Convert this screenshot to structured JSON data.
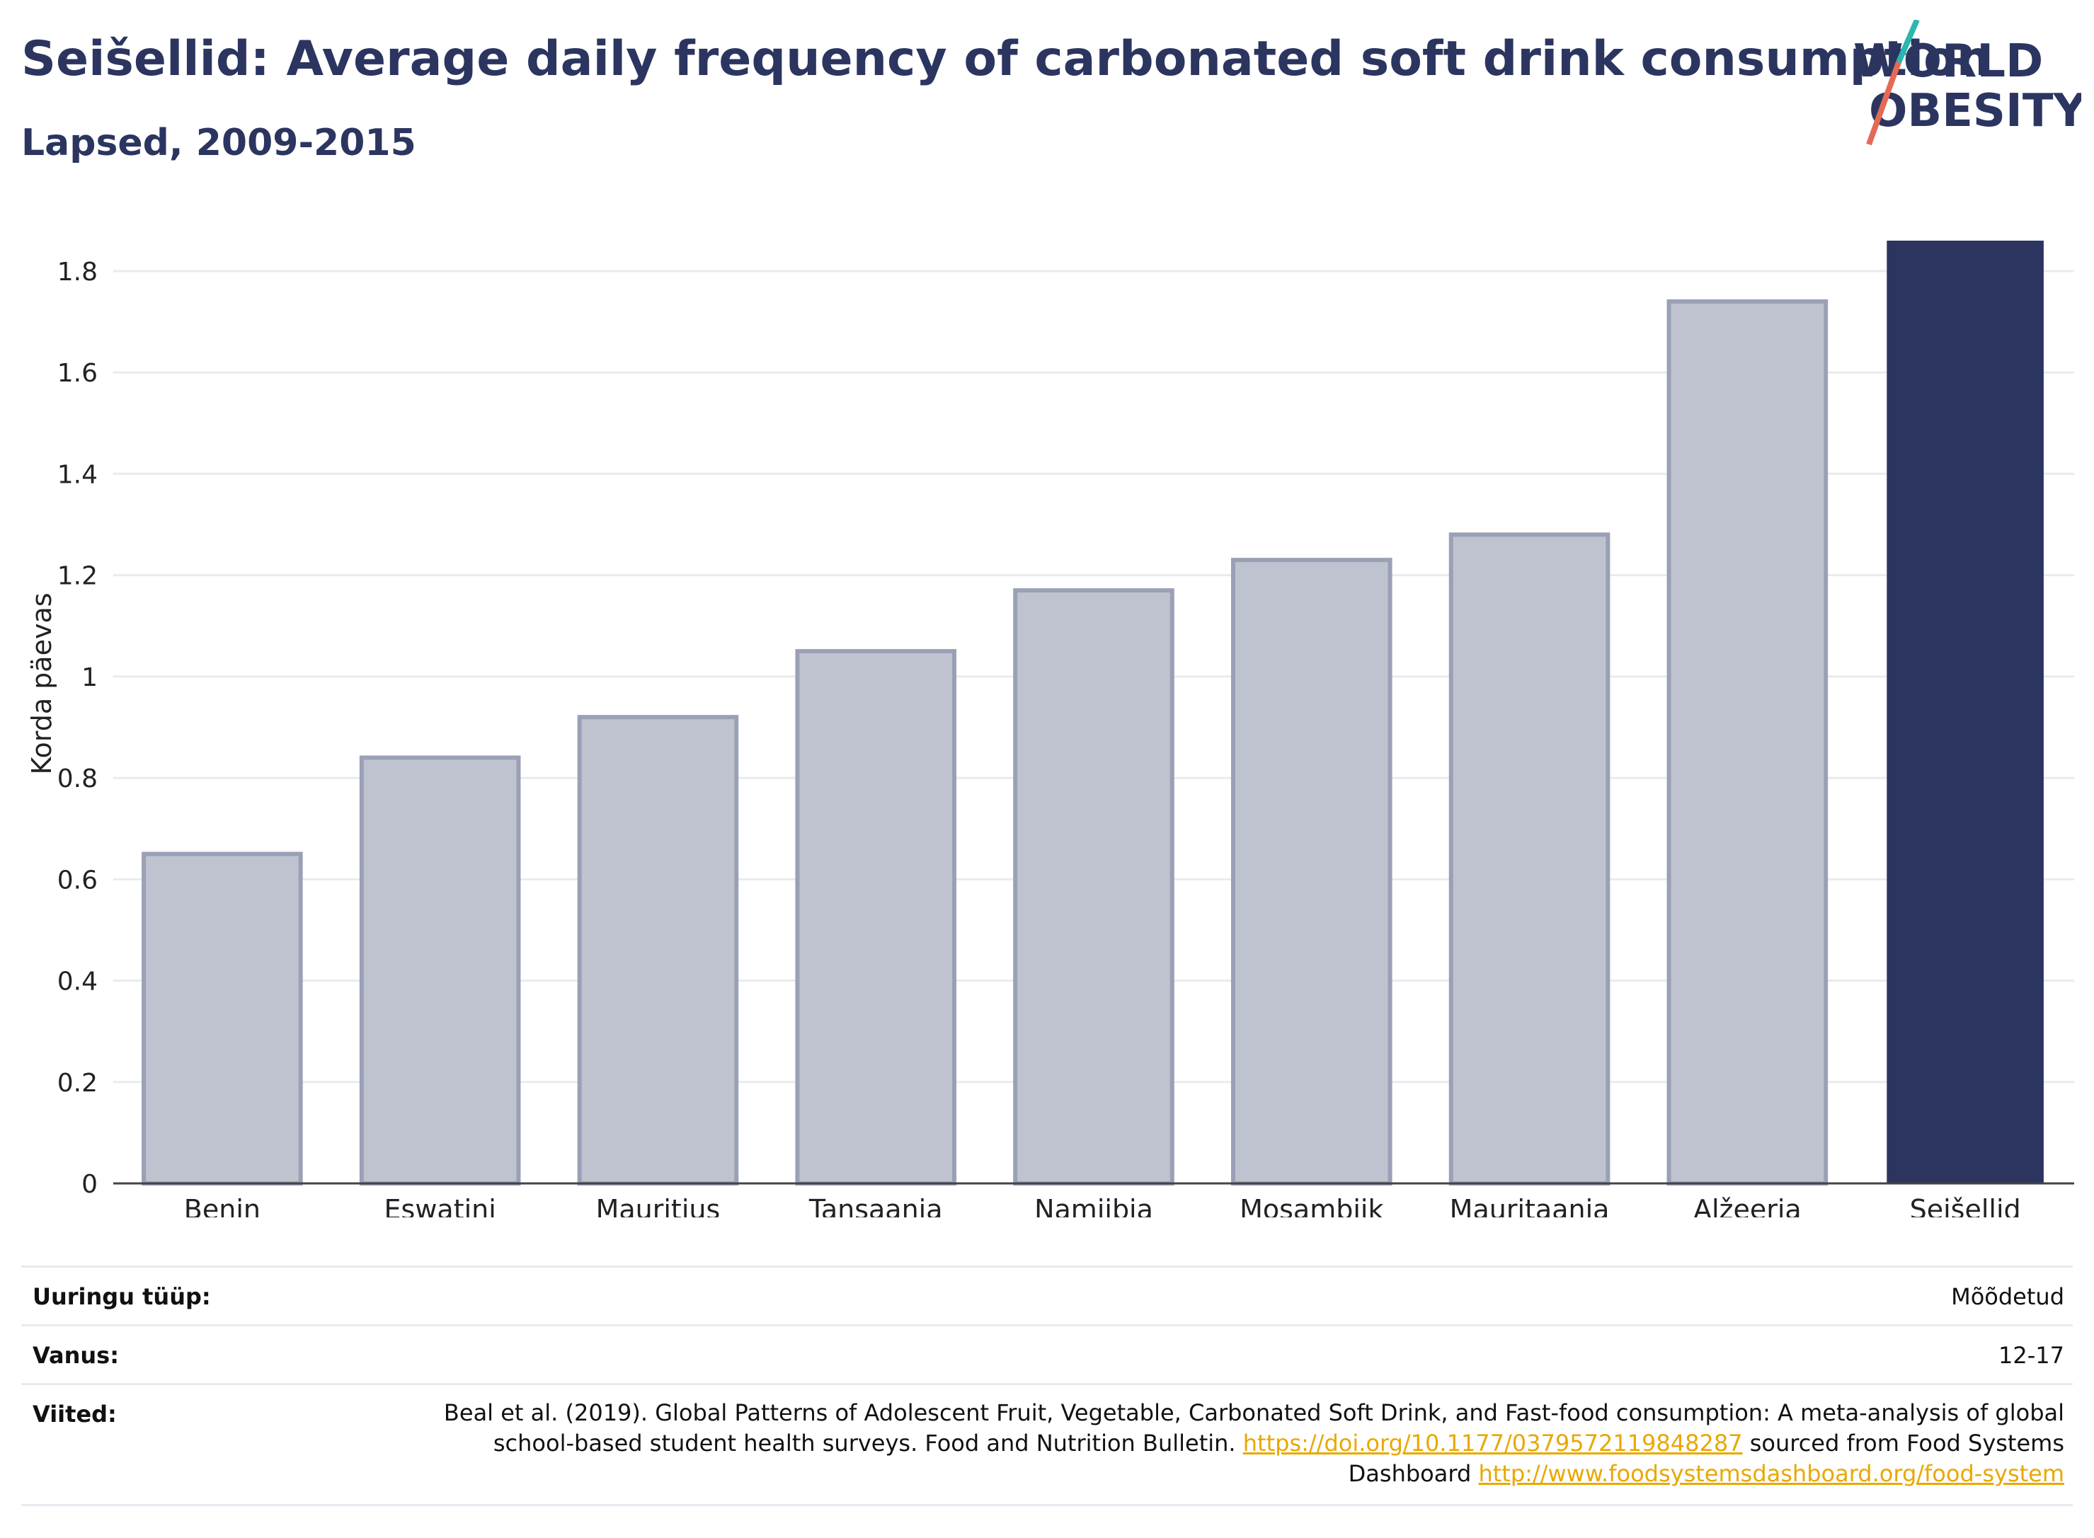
{
  "header": {
    "title": "Seišellid: Average daily frequency of carbonated soft drink consumption",
    "subtitle": "Lapsed, 2009-2015"
  },
  "logo": {
    "line1": "WORLD",
    "line2": "OBESITY"
  },
  "colors": {
    "highlight": "#2b3560",
    "other": "#bfc3cf",
    "other_border": "#9aa0b5",
    "link": "#e9a800"
  },
  "chart_data": {
    "type": "bar",
    "categories": [
      "Benin",
      "Eswatini",
      "Mauritius",
      "Tansaania",
      "Namiibia",
      "Mosambiik",
      "Mauritaania",
      "Alžeeria",
      "Seišellid"
    ],
    "values": [
      0.65,
      0.84,
      0.92,
      1.05,
      1.17,
      1.23,
      1.28,
      1.74,
      1.86
    ],
    "highlight": "Seišellid",
    "ylabel": "Korda päevas",
    "ylim": [
      0,
      1.86
    ],
    "yticks": [
      0,
      0.2,
      0.4,
      0.6,
      0.8,
      1,
      1.2,
      1.4,
      1.6,
      1.8
    ],
    "ytick_labels": [
      "0",
      "0.2",
      "0.4",
      "0.6",
      "0.8",
      "1",
      "1.2",
      "1.4",
      "1.6",
      "1.8"
    ],
    "grid": true
  },
  "meta": {
    "survey_type": {
      "label": "Uuringu tüüp:",
      "value": "Mõõdetud"
    },
    "age": {
      "label": "Vanus:",
      "value": "12-17"
    },
    "references": {
      "label": "Viited:",
      "text1": "Beal et al. (2019). Global Patterns of Adolescent Fruit, Vegetable, Carbonated Soft Drink, and Fast-food consumption: A meta-analysis of global school-based student health surveys. Food and Nutrition Bulletin. ",
      "link1": "https://doi.org/10.1177/0379572119848287",
      "text2": " sourced from Food Systems Dashboard ",
      "link2": "http://www.foodsystemsdashboard.org/food-system"
    }
  }
}
